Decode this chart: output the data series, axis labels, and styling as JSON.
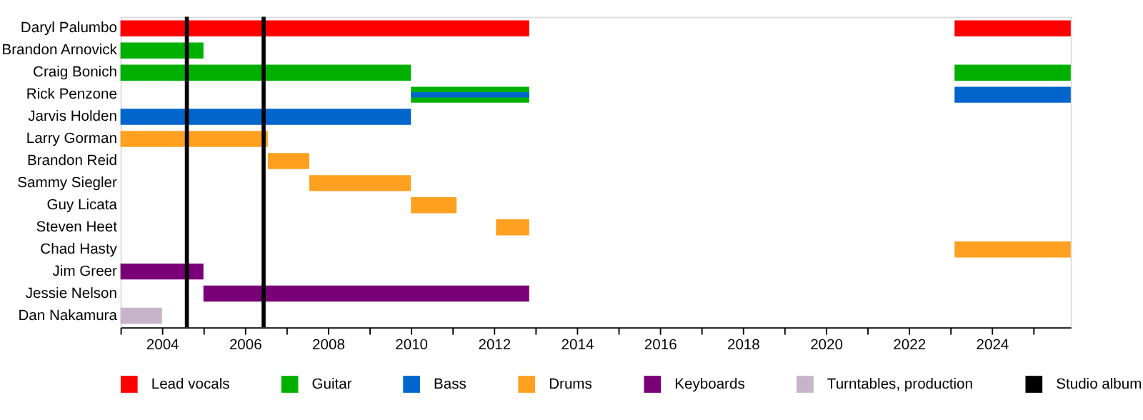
{
  "chart_data": {
    "type": "bar",
    "orientation": "horizontal",
    "categories": [
      "Daryl Palumbo",
      "Brandon Arnovick",
      "Craig Bonich",
      "Rick Penzone",
      "Jarvis Holden",
      "Larry Gorman",
      "Brandon Reid",
      "Sammy Siegler",
      "Guy Licata",
      "Steven Heet",
      "Chad Hasty",
      "Jim Greer",
      "Jessie Nelson",
      "Dan Nakamura"
    ],
    "series": [
      {
        "name": "Lead vocals",
        "color": "#ff0000",
        "base": [
          2003,
          null,
          null,
          null,
          null,
          null,
          null,
          null,
          null,
          null,
          null,
          null,
          null,
          null
        ],
        "values": [
          9.85,
          null,
          null,
          null,
          null,
          null,
          null,
          null,
          null,
          null,
          null,
          null,
          null,
          null
        ]
      },
      {
        "color": "#ff0000",
        "base": [
          2023.1,
          null,
          null,
          null,
          null,
          null,
          null,
          null,
          null,
          null,
          null,
          null,
          null,
          null
        ],
        "values": [
          2.8,
          null,
          null,
          null,
          null,
          null,
          null,
          null,
          null,
          null,
          null,
          null,
          null,
          null
        ]
      },
      {
        "name": "Guitar",
        "color": "#00b000",
        "base": [
          null,
          2003,
          2003,
          2010,
          null,
          null,
          null,
          null,
          null,
          null,
          null,
          null,
          null,
          null
        ],
        "values": [
          null,
          2,
          7,
          2.85,
          null,
          null,
          null,
          null,
          null,
          null,
          null,
          null,
          null,
          null
        ]
      },
      {
        "color": "#00b000",
        "base": [
          null,
          null,
          2023.1,
          null,
          null,
          null,
          null,
          null,
          null,
          null,
          null,
          null,
          null,
          null
        ],
        "values": [
          null,
          null,
          2.8,
          null,
          null,
          null,
          null,
          null,
          null,
          null,
          null,
          null,
          null,
          null
        ]
      },
      {
        "name": "Bass",
        "color": "#0066cc",
        "base": [
          null,
          null,
          null,
          2023.1,
          2003,
          null,
          null,
          null,
          null,
          null,
          null,
          null,
          null,
          null
        ],
        "values": [
          null,
          null,
          null,
          2.8,
          7,
          null,
          null,
          null,
          null,
          null,
          null,
          null,
          null,
          null
        ]
      },
      {
        "color": "#0066cc",
        "base": [
          null,
          null,
          null,
          2010,
          null,
          null,
          null,
          null,
          null,
          null,
          null,
          null,
          null,
          null
        ],
        "values": [
          null,
          null,
          null,
          2.85,
          null,
          null,
          null,
          null,
          null,
          null,
          null,
          null,
          null,
          null
        ]
      },
      {
        "name": "Drums",
        "color": "#ffa020",
        "base": [
          null,
          null,
          null,
          null,
          null,
          2003,
          2006.55,
          2007.55,
          2010,
          2012.05,
          2023.1,
          null,
          null,
          null
        ],
        "values": [
          null,
          null,
          null,
          null,
          null,
          3.55,
          1,
          2.45,
          1.1,
          0.8,
          2.8,
          null,
          null,
          null
        ]
      },
      {
        "name": "Keyboards",
        "color": "#7a0078",
        "base": [
          null,
          null,
          null,
          null,
          null,
          null,
          null,
          null,
          null,
          null,
          null,
          2003,
          2005,
          null
        ],
        "values": [
          null,
          null,
          null,
          null,
          null,
          null,
          null,
          null,
          null,
          null,
          null,
          2,
          7.85,
          null
        ]
      },
      {
        "name": "Turntables, production",
        "color": "#c8b4c8",
        "base": [
          null,
          null,
          null,
          null,
          null,
          null,
          null,
          null,
          null,
          null,
          null,
          null,
          null,
          2003
        ],
        "values": [
          null,
          null,
          null,
          null,
          null,
          null,
          null,
          null,
          null,
          null,
          null,
          null,
          null,
          1
        ]
      }
    ],
    "ref_lines": [
      {
        "axis": "x",
        "value": 2004.6,
        "label": "Studio album",
        "color": "#000000"
      },
      {
        "axis": "x",
        "value": 2006.45,
        "color": "#000000"
      }
    ],
    "xlim": [
      2003,
      2025.9
    ],
    "xticks": [
      {
        "value": 2003,
        "label": null
      },
      2004,
      {
        "value": 2005,
        "label": null
      },
      2006,
      {
        "value": 2007,
        "label": null
      },
      2008,
      {
        "value": 2009,
        "label": null
      },
      2010,
      {
        "value": 2011,
        "label": null
      },
      2012,
      {
        "value": 2013,
        "label": null
      },
      2014,
      {
        "value": 2015,
        "label": null
      },
      2016,
      {
        "value": 2017,
        "label": null
      },
      2018,
      {
        "value": 2019,
        "label": null
      },
      2020,
      {
        "value": 2021,
        "label": null
      },
      2022,
      {
        "value": 2023,
        "label": null
      },
      2024,
      {
        "value": 2025,
        "label": null
      }
    ],
    "grid": false,
    "legend": "bottom"
  }
}
